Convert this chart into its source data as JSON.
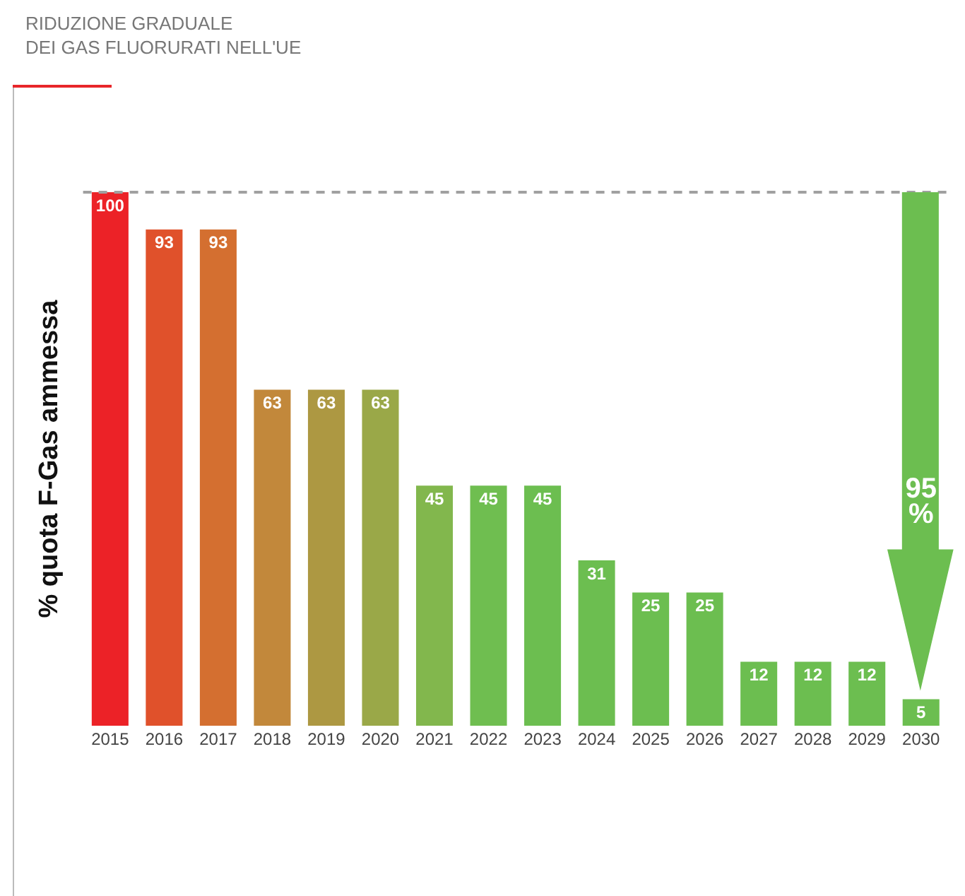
{
  "chart_data": {
    "type": "bar",
    "title": "RIDUZIONE GRADUALE\nDEI GAS FLUORURATI NELL'UE",
    "ylabel": "% quota F-Gas ammessa",
    "categories": [
      "2015",
      "2016",
      "2017",
      "2018",
      "2019",
      "2020",
      "2021",
      "2022",
      "2023",
      "2024",
      "2025",
      "2026",
      "2027",
      "2028",
      "2029",
      "2030"
    ],
    "values": [
      100,
      93,
      93,
      63,
      63,
      63,
      45,
      45,
      45,
      31,
      25,
      25,
      12,
      12,
      12,
      5
    ],
    "colors": [
      "#ec2227",
      "#e0512b",
      "#d46f30",
      "#c2883b",
      "#ad9842",
      "#9aa848",
      "#82b74d",
      "#6fbe50",
      "#6cbe50",
      "#6cbe50",
      "#6cbe50",
      "#6cbe50",
      "#6cbe50",
      "#6cbe50",
      "#6cbe50",
      "#6cbe50"
    ],
    "data_labels": true,
    "ref_lines": [
      {
        "axis": "y",
        "value": 100,
        "color": "#a0a0a0",
        "line_style": "dashed"
      }
    ],
    "annotations": [
      "95 %"
    ],
    "legend": false,
    "grid": false
  }
}
